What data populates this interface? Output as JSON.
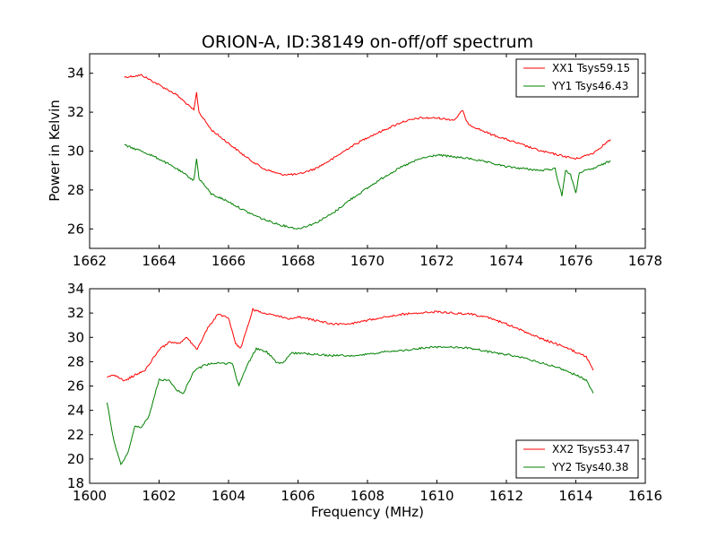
{
  "chart_data": [
    {
      "type": "line",
      "title": "ORION-A, ID:38149 on-off/off spectrum",
      "xlabel": "",
      "ylabel": "Power in Kelvin",
      "xlim": [
        1662,
        1678
      ],
      "ylim": [
        25,
        35
      ],
      "xticks": [
        1662,
        1664,
        1666,
        1668,
        1670,
        1672,
        1674,
        1676,
        1678
      ],
      "yticks": [
        26,
        28,
        30,
        32,
        34
      ],
      "grid": false,
      "legend_position": "top-right",
      "series": [
        {
          "name": "XX1 Tsys59.15",
          "color": "#ff0000",
          "points": [
            [
              1663.0,
              33.8
            ],
            [
              1663.5,
              33.9
            ],
            [
              1664.0,
              33.4
            ],
            [
              1664.5,
              32.9
            ],
            [
              1665.0,
              32.1
            ],
            [
              1665.08,
              33.0
            ],
            [
              1665.15,
              32.0
            ],
            [
              1665.5,
              31.1
            ],
            [
              1666.0,
              30.4
            ],
            [
              1666.5,
              29.7
            ],
            [
              1667.0,
              29.1
            ],
            [
              1667.5,
              28.8
            ],
            [
              1668.0,
              28.8
            ],
            [
              1668.5,
              29.1
            ],
            [
              1669.0,
              29.6
            ],
            [
              1669.5,
              30.2
            ],
            [
              1670.0,
              30.7
            ],
            [
              1670.5,
              31.1
            ],
            [
              1671.0,
              31.5
            ],
            [
              1671.5,
              31.7
            ],
            [
              1672.0,
              31.7
            ],
            [
              1672.5,
              31.6
            ],
            [
              1672.75,
              32.1
            ],
            [
              1672.85,
              31.5
            ],
            [
              1673.0,
              31.3
            ],
            [
              1673.5,
              30.9
            ],
            [
              1674.0,
              30.6
            ],
            [
              1674.5,
              30.3
            ],
            [
              1675.0,
              30.0
            ],
            [
              1675.5,
              29.8
            ],
            [
              1676.0,
              29.6
            ],
            [
              1676.5,
              29.9
            ],
            [
              1677.0,
              30.6
            ]
          ]
        },
        {
          "name": "YY1 Tsys46.43",
          "color": "#008000",
          "points": [
            [
              1663.0,
              30.3
            ],
            [
              1663.5,
              30.0
            ],
            [
              1664.0,
              29.6
            ],
            [
              1664.5,
              29.1
            ],
            [
              1665.0,
              28.5
            ],
            [
              1665.08,
              29.6
            ],
            [
              1665.15,
              28.6
            ],
            [
              1665.5,
              27.8
            ],
            [
              1666.0,
              27.4
            ],
            [
              1666.5,
              26.9
            ],
            [
              1667.0,
              26.5
            ],
            [
              1667.5,
              26.2
            ],
            [
              1668.0,
              26.0
            ],
            [
              1668.5,
              26.3
            ],
            [
              1669.0,
              26.8
            ],
            [
              1669.5,
              27.5
            ],
            [
              1670.0,
              28.1
            ],
            [
              1670.5,
              28.7
            ],
            [
              1671.0,
              29.2
            ],
            [
              1671.5,
              29.6
            ],
            [
              1672.0,
              29.8
            ],
            [
              1672.5,
              29.7
            ],
            [
              1673.0,
              29.6
            ],
            [
              1673.5,
              29.4
            ],
            [
              1674.0,
              29.2
            ],
            [
              1674.5,
              29.1
            ],
            [
              1675.0,
              29.0
            ],
            [
              1675.4,
              29.1
            ],
            [
              1675.6,
              27.7
            ],
            [
              1675.7,
              29.0
            ],
            [
              1675.85,
              28.8
            ],
            [
              1676.0,
              27.8
            ],
            [
              1676.1,
              28.9
            ],
            [
              1676.5,
              29.1
            ],
            [
              1677.0,
              29.5
            ]
          ]
        }
      ]
    },
    {
      "type": "line",
      "title": "",
      "xlabel": "Frequency (MHz)",
      "ylabel": "",
      "xlim": [
        1600,
        1616
      ],
      "ylim": [
        18,
        34
      ],
      "xticks": [
        1600,
        1602,
        1604,
        1606,
        1608,
        1610,
        1612,
        1614,
        1616
      ],
      "yticks": [
        18,
        20,
        22,
        24,
        26,
        28,
        30,
        32,
        34
      ],
      "grid": false,
      "legend_position": "bottom-right",
      "series": [
        {
          "name": "XX2 Tsys53.47",
          "color": "#ff0000",
          "points": [
            [
              1600.5,
              26.8
            ],
            [
              1600.7,
              26.9
            ],
            [
              1601.0,
              26.4
            ],
            [
              1601.3,
              26.9
            ],
            [
              1601.6,
              27.3
            ],
            [
              1602.0,
              29.0
            ],
            [
              1602.3,
              29.6
            ],
            [
              1602.6,
              29.5
            ],
            [
              1602.8,
              30.0
            ],
            [
              1603.1,
              29.0
            ],
            [
              1603.4,
              30.8
            ],
            [
              1603.7,
              31.9
            ],
            [
              1604.0,
              31.6
            ],
            [
              1604.2,
              29.5
            ],
            [
              1604.35,
              29.1
            ],
            [
              1604.7,
              32.3
            ],
            [
              1605.0,
              32.0
            ],
            [
              1605.4,
              31.8
            ],
            [
              1605.7,
              31.5
            ],
            [
              1606.0,
              31.7
            ],
            [
              1606.5,
              31.4
            ],
            [
              1607.0,
              31.1
            ],
            [
              1607.5,
              31.1
            ],
            [
              1608.0,
              31.4
            ],
            [
              1608.5,
              31.7
            ],
            [
              1609.0,
              31.9
            ],
            [
              1609.5,
              32.0
            ],
            [
              1610.0,
              32.1
            ],
            [
              1610.5,
              32.0
            ],
            [
              1611.0,
              31.9
            ],
            [
              1611.5,
              31.6
            ],
            [
              1612.0,
              31.1
            ],
            [
              1612.5,
              30.5
            ],
            [
              1613.0,
              29.9
            ],
            [
              1613.5,
              29.4
            ],
            [
              1614.0,
              28.8
            ],
            [
              1614.3,
              28.4
            ],
            [
              1614.5,
              27.3
            ]
          ]
        },
        {
          "name": "YY2 Tsys40.38",
          "color": "#008000",
          "points": [
            [
              1600.5,
              24.6
            ],
            [
              1600.7,
              21.5
            ],
            [
              1600.9,
              19.5
            ],
            [
              1601.1,
              20.5
            ],
            [
              1601.3,
              22.7
            ],
            [
              1601.5,
              22.6
            ],
            [
              1601.7,
              23.5
            ],
            [
              1602.0,
              26.5
            ],
            [
              1602.3,
              26.5
            ],
            [
              1602.5,
              25.7
            ],
            [
              1602.7,
              25.4
            ],
            [
              1603.0,
              27.2
            ],
            [
              1603.3,
              27.7
            ],
            [
              1603.6,
              27.9
            ],
            [
              1603.9,
              27.8
            ],
            [
              1604.1,
              27.9
            ],
            [
              1604.3,
              26.0
            ],
            [
              1604.5,
              27.5
            ],
            [
              1604.8,
              29.1
            ],
            [
              1605.1,
              28.8
            ],
            [
              1605.4,
              27.9
            ],
            [
              1605.6,
              28.0
            ],
            [
              1605.8,
              28.7
            ],
            [
              1606.0,
              28.7
            ],
            [
              1606.5,
              28.6
            ],
            [
              1607.0,
              28.5
            ],
            [
              1607.5,
              28.5
            ],
            [
              1608.0,
              28.6
            ],
            [
              1608.5,
              28.8
            ],
            [
              1609.0,
              28.9
            ],
            [
              1609.5,
              29.1
            ],
            [
              1610.0,
              29.2
            ],
            [
              1610.5,
              29.2
            ],
            [
              1611.0,
              29.1
            ],
            [
              1611.5,
              28.8
            ],
            [
              1612.0,
              28.6
            ],
            [
              1612.5,
              28.3
            ],
            [
              1613.0,
              27.9
            ],
            [
              1613.5,
              27.5
            ],
            [
              1614.0,
              26.9
            ],
            [
              1614.3,
              26.5
            ],
            [
              1614.5,
              25.4
            ]
          ]
        }
      ]
    }
  ]
}
